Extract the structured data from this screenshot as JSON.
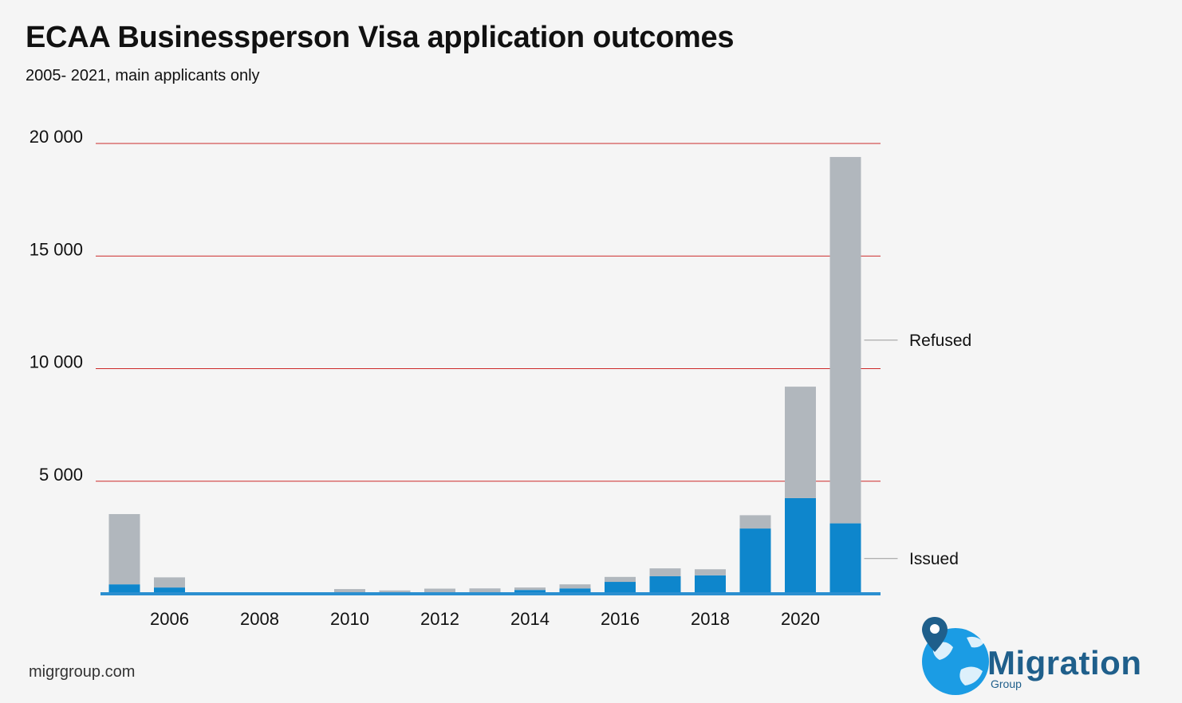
{
  "page": {
    "title": "ECAA Businessperson Visa application outcomes",
    "subtitle": "2005- 2021, main applicants only",
    "source": "migrgroup.com"
  },
  "logo": {
    "word": "Migration",
    "sub": "Group",
    "colors": {
      "globe": "#1b9ce4",
      "pin": "#1f5f8b",
      "text": "#1f5f8b"
    }
  },
  "chart_data": {
    "type": "bar",
    "stacked": true,
    "title": "ECAA Businessperson Visa application outcomes",
    "subtitle": "2005- 2021, main applicants only",
    "xlabel": "",
    "ylabel": "",
    "categories": [
      "2005",
      "2006",
      "2007",
      "2008",
      "2009",
      "2010",
      "2011",
      "2012",
      "2013",
      "2014",
      "2015",
      "2016",
      "2017",
      "2018",
      "2019",
      "2020",
      "2021"
    ],
    "x_tick_labels": [
      "2006",
      "2008",
      "2010",
      "2012",
      "2014",
      "2016",
      "2018",
      "2020"
    ],
    "y_tick_labels": [
      "20 000",
      "15 000",
      "10 000",
      "5 000"
    ],
    "y_ticks": [
      20000,
      15000,
      10000,
      5000
    ],
    "ylim": [
      0,
      20000
    ],
    "grid": true,
    "legend": "inline labels at right",
    "series": [
      {
        "name": "Issued",
        "color": "#0e86cc",
        "values": [
          420,
          280,
          10,
          10,
          10,
          40,
          30,
          50,
          60,
          170,
          240,
          530,
          780,
          820,
          2900,
          4250,
          3130
        ]
      },
      {
        "name": "Refused",
        "color": "#b1b7bd",
        "values": [
          3120,
          450,
          10,
          10,
          10,
          170,
          120,
          180,
          180,
          110,
          180,
          220,
          350,
          270,
          590,
          4950,
          16270
        ]
      }
    ],
    "colors": {
      "gridline": "#cc2a2a",
      "baseline": "#2b8fd0",
      "leader": "#9a9a9a"
    }
  }
}
